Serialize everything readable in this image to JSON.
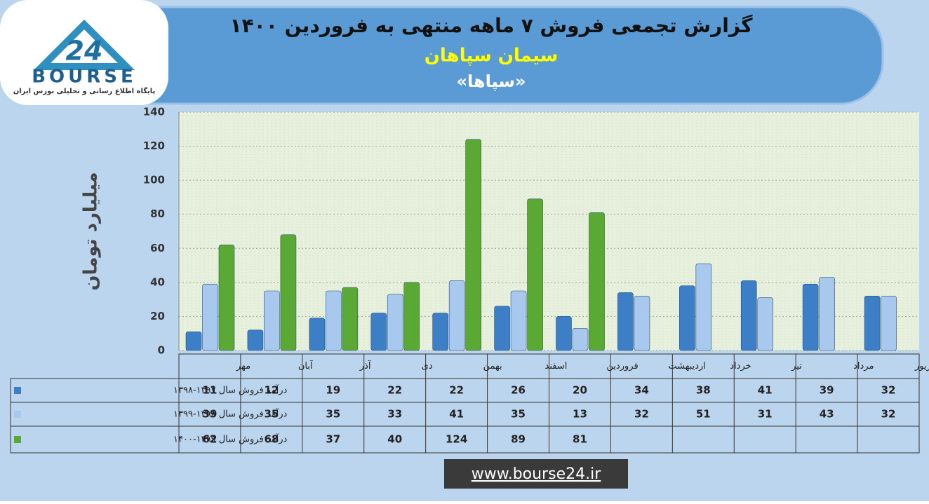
{
  "logo": {
    "number": "24",
    "name": "BOURSE",
    "tagline": "پایگاه اطلاع رسانی و تحلیلی بورس ایران"
  },
  "chart_data": {
    "type": "bar",
    "title": "گزارش تجمعی فروش ۷ ماهه منتهی به فروردین ۱۴۰۰",
    "subtitle": "سیمان سپاهان",
    "symbol": "«سپاها»",
    "y_label": "میلیارد تومان",
    "categories": [
      "مهر",
      "آبان",
      "آذر",
      "دی",
      "بهمن",
      "اسفند",
      "فروردین",
      "اردیبهشت",
      "خرداد",
      "تیر",
      "مرداد",
      "شهریور"
    ],
    "series": [
      {
        "name": "درآمد فروش سال ۱۳۹۷-۱۳۹۸",
        "color": "#3d7fc6",
        "values": [
          11,
          12,
          19,
          22,
          22,
          26,
          20,
          34,
          38,
          41,
          39,
          32
        ]
      },
      {
        "name": "درآمد فروش سال ۱۳۹۸-۱۳۹۹",
        "color": "#a8c8ee",
        "values": [
          39,
          35,
          35,
          33,
          41,
          35,
          13,
          32,
          51,
          31,
          43,
          32
        ]
      },
      {
        "name": "درآمد فروش سال ۱۳۹۹-۱۴۰۰",
        "color": "#5aa934",
        "values": [
          62,
          68,
          37,
          40,
          124,
          89,
          81,
          null,
          null,
          null,
          null,
          null
        ]
      }
    ],
    "ylim": [
      0,
      140
    ],
    "yticks": [
      0,
      20,
      40,
      60,
      80,
      100,
      120,
      140
    ],
    "grid": true,
    "source": "www.bourse24.ir"
  }
}
